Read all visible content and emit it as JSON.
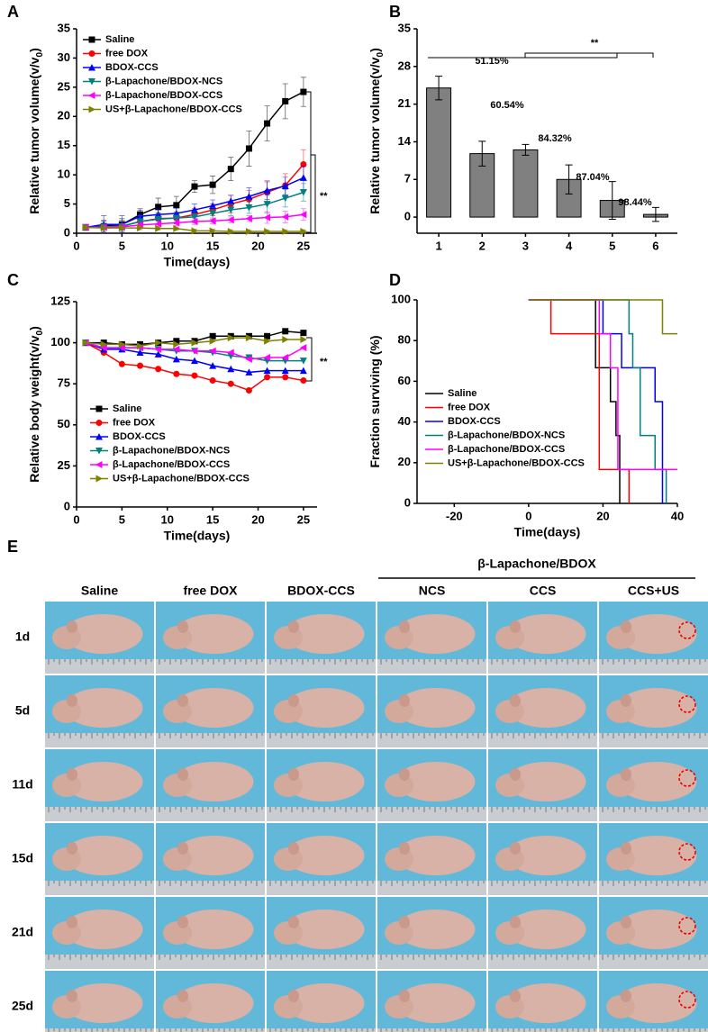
{
  "chart_data": [
    {
      "type": "line",
      "panel_label": "A",
      "x_label": "Time(days)",
      "y_label": "Relative tumor volume(v/v",
      "y_label_sub": "0",
      "y_label_end": ")",
      "x": [
        1,
        3,
        5,
        7,
        9,
        11,
        13,
        15,
        17,
        19,
        21,
        23,
        25
      ],
      "xlim": [
        0,
        26.5
      ],
      "xticks": [
        0,
        5,
        10,
        15,
        20,
        25
      ],
      "ylim": [
        0,
        35
      ],
      "yticks": [
        0,
        5,
        10,
        15,
        20,
        25,
        30,
        35
      ],
      "annotations": [
        "**"
      ],
      "series": [
        {
          "name": "Saline",
          "color": "#000000",
          "marker": "square",
          "values": [
            1,
            1.2,
            1.5,
            3.2,
            4.5,
            4.8,
            8,
            8.3,
            11,
            14.5,
            18.8,
            22.6,
            24.2
          ],
          "errors": [
            0.5,
            1,
            1,
            1,
            1.5,
            1.5,
            1,
            1.5,
            2,
            3,
            3,
            3,
            2.5
          ]
        },
        {
          "name": "free DOX",
          "color": "#ff0000",
          "marker": "circle",
          "values": [
            1,
            1.1,
            1.2,
            2,
            2.5,
            2.6,
            3.2,
            4,
            5,
            5.8,
            7,
            8.2,
            11.8
          ],
          "errors": [
            0.5,
            1,
            1,
            1,
            1,
            1,
            1,
            1,
            1.5,
            1.5,
            2,
            2,
            2.5
          ]
        },
        {
          "name": "BDOX-CCS",
          "color": "#0000ff",
          "marker": "up",
          "values": [
            1,
            1.5,
            1.5,
            2.9,
            3.2,
            3.4,
            4,
            4.7,
            5.5,
            6.3,
            7.3,
            8.1,
            9.5
          ],
          "errors": [
            0.5,
            1.5,
            1.5,
            1,
            1,
            1,
            1,
            1,
            1,
            1.5,
            1.5,
            1.5,
            2
          ]
        },
        {
          "name": "β-Lapachone/BDOX-NCS",
          "color": "#008080",
          "marker": "down",
          "values": [
            1,
            1.1,
            1.2,
            2,
            2.4,
            2.6,
            2.8,
            3.4,
            4,
            4.4,
            5,
            6,
            7
          ],
          "errors": [
            0.5,
            1,
            1,
            1,
            1,
            1,
            1,
            1,
            1,
            1,
            1.5,
            1.5,
            1.5
          ]
        },
        {
          "name": "β-Lapachone/BDOX-CCS",
          "color": "#ff00ff",
          "marker": "left",
          "values": [
            1,
            1,
            1.1,
            1.4,
            1.6,
            1.8,
            2,
            2.1,
            2.3,
            2.5,
            2.7,
            2.8,
            3.2
          ],
          "errors": [
            0.5,
            0.5,
            0.5,
            0.5,
            0.5,
            0.5,
            0.5,
            0.5,
            0.5,
            0.5,
            1,
            1,
            1
          ]
        },
        {
          "name": "US+β-Lapachone/BDOX-CCS",
          "color": "#808000",
          "marker": "right",
          "values": [
            1,
            0.9,
            0.9,
            0.9,
            0.8,
            0.8,
            0.4,
            0.4,
            0.3,
            0.3,
            0.3,
            0.3,
            0.3
          ],
          "errors": [
            0.3,
            0.3,
            0.3,
            0.3,
            0.3,
            0.3,
            0.3,
            0.3,
            0.3,
            0.3,
            0.3,
            0.3,
            0.3
          ]
        }
      ]
    },
    {
      "type": "bar",
      "panel_label": "B",
      "y_label": "Relative tumor volume(v/v",
      "y_label_sub": "0",
      "y_label_end": ")",
      "categories": [
        "1",
        "2",
        "3",
        "4",
        "5",
        "6"
      ],
      "values": [
        24,
        11.8,
        12.5,
        7,
        3.1,
        0.5
      ],
      "errors": [
        2.2,
        2.3,
        1,
        2.7,
        3.5,
        1.3
      ],
      "color": "#808080",
      "ylim": [
        -3,
        35
      ],
      "yticks": [
        0,
        7,
        14,
        21,
        28,
        35
      ],
      "annotations": [
        "51.15%",
        "60.54%",
        "84.32%",
        "87.04%",
        "98.44%",
        "**"
      ]
    },
    {
      "type": "line",
      "panel_label": "C",
      "x_label": "Time(days)",
      "y_label": "Relative body weight(v/v",
      "y_label_sub": "0",
      "y_label_end": ")",
      "x": [
        1,
        3,
        5,
        7,
        9,
        11,
        13,
        15,
        17,
        19,
        21,
        23,
        25
      ],
      "xlim": [
        0,
        26.5
      ],
      "xticks": [
        0,
        5,
        10,
        15,
        20,
        25
      ],
      "ylim": [
        0,
        125
      ],
      "yticks": [
        0,
        25,
        50,
        75,
        100,
        125
      ],
      "annotations": [
        "**"
      ],
      "series": [
        {
          "name": "Saline",
          "color": "#000000",
          "marker": "square",
          "values": [
            100,
            100,
            99,
            99,
            100,
            101,
            101,
            104,
            104,
            104,
            104,
            107,
            106
          ]
        },
        {
          "name": "free DOX",
          "color": "#ff0000",
          "marker": "circle",
          "values": [
            100,
            94,
            87,
            86,
            84,
            81,
            80,
            77,
            75,
            71,
            79,
            79,
            77
          ]
        },
        {
          "name": "BDOX-CCS",
          "color": "#0000ff",
          "marker": "up",
          "values": [
            100,
            96,
            96,
            94,
            93,
            90,
            89,
            86,
            84,
            82,
            83,
            83,
            83
          ]
        },
        {
          "name": "β-Lapachone/BDOX-NCS",
          "color": "#008080",
          "marker": "down",
          "values": [
            100,
            97,
            97,
            97,
            96,
            95,
            95,
            94,
            92,
            91,
            89,
            89,
            89
          ]
        },
        {
          "name": "β-Lapachone/BDOX-CCS",
          "color": "#ff00ff",
          "marker": "left",
          "values": [
            100,
            97,
            97,
            97,
            96,
            96,
            95,
            95,
            94,
            90,
            91,
            91,
            97
          ]
        },
        {
          "name": "US+β-Lapachone/BDOX-CCS",
          "color": "#808000",
          "marker": "right",
          "values": [
            100,
            99,
            99,
            98,
            100,
            99,
            100,
            101,
            103,
            103,
            101,
            102,
            102
          ]
        }
      ]
    },
    {
      "type": "step",
      "panel_label": "D",
      "x_label": "Time(days)",
      "y_label": "Fraction surviving (%)",
      "xlim": [
        -30,
        40
      ],
      "xticks": [
        -20,
        0,
        20,
        40
      ],
      "ylim": [
        0,
        100
      ],
      "yticks": [
        0,
        20,
        40,
        60,
        80,
        100
      ],
      "series": [
        {
          "name": "Saline",
          "color": "#000000",
          "x": [
            0,
            18,
            22,
            23.5,
            24.5
          ],
          "values": [
            100,
            66.67,
            50,
            33.33,
            0
          ]
        },
        {
          "name": "free DOX",
          "color": "#ff0000",
          "x": [
            0,
            6,
            19,
            27
          ],
          "values": [
            100,
            83.33,
            16.67,
            0
          ]
        },
        {
          "name": "BDOX-CCS",
          "color": "#0000ff",
          "x": [
            0,
            20,
            25,
            34,
            36
          ],
          "values": [
            100,
            83.33,
            66.67,
            50,
            0
          ]
        },
        {
          "name": "β-Lapachone/BDOX-NCS",
          "color": "#008080",
          "x": [
            0,
            27,
            28,
            30,
            34,
            37
          ],
          "values": [
            100,
            83.33,
            66.67,
            33.33,
            16.67,
            0
          ]
        },
        {
          "name": "β-Lapachone/BDOX-CCS",
          "color": "#ff00ff",
          "x": [
            0,
            19,
            22,
            24,
            40
          ],
          "values": [
            100,
            83.33,
            66.67,
            16.67,
            16.67
          ]
        },
        {
          "name": "US+β-Lapachone/BDOX-CCS",
          "color": "#808000",
          "x": [
            0,
            36,
            40
          ],
          "values": [
            100,
            83.33,
            83.33
          ]
        }
      ]
    }
  ],
  "photo_grid": {
    "label": "E",
    "group_header": "β-Lapachone/BDOX",
    "columns": [
      "Saline",
      "free DOX",
      "BDOX-CCS",
      "NCS",
      "CCS",
      "CCS+US"
    ],
    "rows": [
      "1d",
      "5d",
      "11d",
      "15d",
      "21d",
      "25d"
    ]
  }
}
